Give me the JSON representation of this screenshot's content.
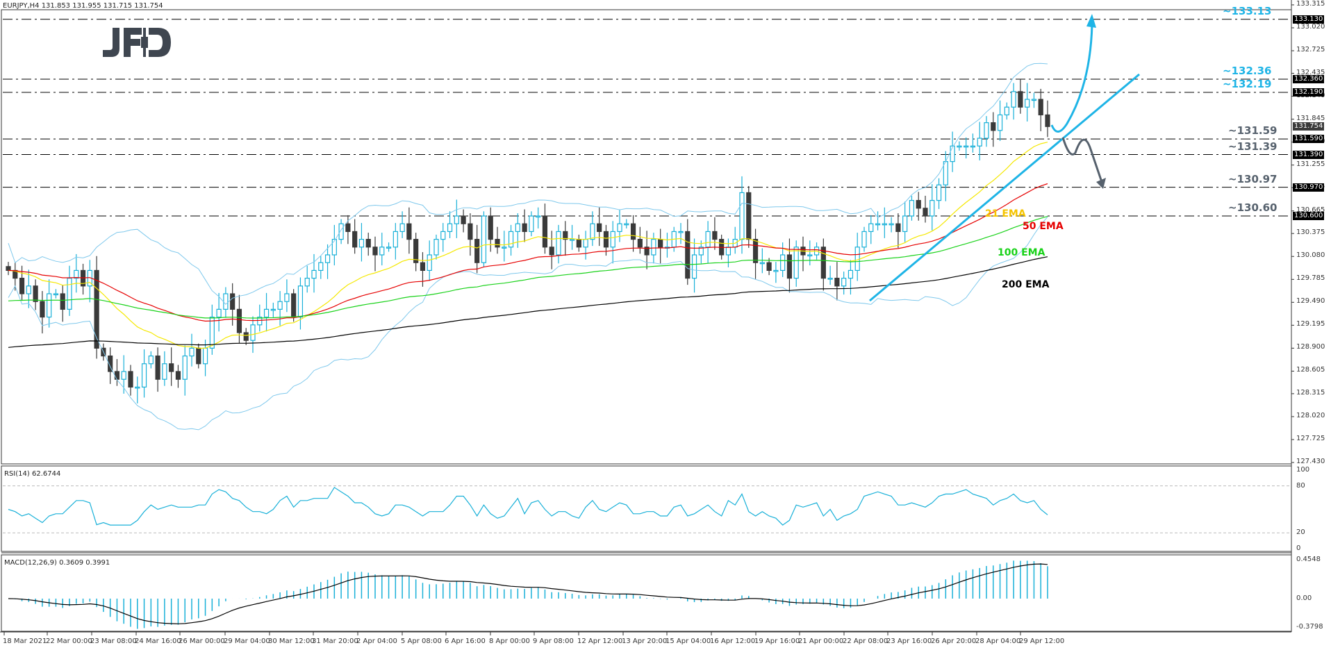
{
  "window": {
    "symbol_header": "EURJPY,H4  131.853 131.955 131.715 131.754",
    "logo_text": "JFD"
  },
  "chart_data": {
    "type": "candlestick",
    "title": "EURJPY,H4",
    "ohlc_header": {
      "open": 131.853,
      "high": 131.955,
      "low": 131.715,
      "close": 131.754
    },
    "price_axis": {
      "range": [
        127.43,
        133.315
      ],
      "ticks": [
        "133.315",
        "133.020",
        "132.725",
        "132.435",
        "132.140",
        "131.845",
        "131.550",
        "131.255",
        "130.965",
        "130.665",
        "130.375",
        "130.080",
        "129.785",
        "129.490",
        "129.195",
        "128.900",
        "128.605",
        "128.315",
        "128.020",
        "127.725",
        "127.430"
      ],
      "tags": [
        {
          "value": "133.130",
          "price": 133.13
        },
        {
          "value": "132.360",
          "price": 132.36
        },
        {
          "value": "132.190",
          "price": 132.19
        },
        {
          "value": "131.754",
          "price": 131.754,
          "current": true
        },
        {
          "value": "131.590",
          "price": 131.59
        },
        {
          "value": "131.390",
          "price": 131.39
        },
        {
          "value": "130.970",
          "price": 130.97
        },
        {
          "value": "130.600",
          "price": 130.6
        }
      ]
    },
    "levels": [
      {
        "label": "~133.13",
        "price": 133.13,
        "color": "#1eb4e6"
      },
      {
        "label": "~132.36",
        "price": 132.36,
        "color": "#1eb4e6"
      },
      {
        "label": "~132.19",
        "price": 132.19,
        "color": "#1eb4e6"
      },
      {
        "label": "~131.59",
        "price": 131.59,
        "color": "#56616d"
      },
      {
        "label": "~131.39",
        "price": 131.39,
        "color": "#56616d"
      },
      {
        "label": "~130.97",
        "price": 130.97,
        "color": "#56616d"
      },
      {
        "label": "~130.60",
        "price": 130.6,
        "color": "#56616d"
      }
    ],
    "ema_labels": [
      {
        "label": "21 EMA",
        "color": "#f5c400"
      },
      {
        "label": "50 EMA",
        "color": "#e60000"
      },
      {
        "label": "100 EMA",
        "color": "#19d219"
      },
      {
        "label": "200 EMA",
        "color": "#000000"
      }
    ],
    "indicators": {
      "rsi": {
        "label": "RSI(14) 62.6744",
        "value": 62.6744,
        "levels": [
          80,
          20
        ],
        "axis": [
          "100",
          "80",
          "20",
          "0"
        ]
      },
      "macd": {
        "label": "MACD(12,26,9) 0.3609 0.3991",
        "main": 0.3609,
        "signal": 0.3991,
        "axis": [
          "0.4548",
          "0.00",
          "-0.3798"
        ]
      }
    },
    "time_axis": [
      "18 Mar 2021",
      "22 Mar 00:00",
      "23 Mar 08:00",
      "24 Mar 16:00",
      "26 Mar 00:00",
      "29 Mar 04:00",
      "30 Mar 12:00",
      "31 Mar 20:00",
      "2 Apr 04:00",
      "5 Apr 08:00",
      "6 Apr 16:00",
      "8 Apr 00:00",
      "9 Apr 08:00",
      "12 Apr 12:00",
      "13 Apr 20:00",
      "15 Apr 04:00",
      "16 Apr 12:00",
      "19 Apr 16:00",
      "21 Apr 00:00",
      "22 Apr 08:00",
      "23 Apr 16:00",
      "26 Apr 20:00",
      "28 Apr 04:00",
      "29 Apr 12:00"
    ],
    "close_series_approx": [
      129.9,
      129.8,
      129.6,
      129.7,
      129.5,
      129.3,
      129.6,
      129.6,
      129.4,
      129.8,
      129.9,
      129.7,
      129.9,
      128.9,
      128.8,
      128.6,
      128.5,
      128.6,
      128.4,
      128.4,
      128.7,
      128.8,
      128.5,
      128.7,
      128.6,
      128.5,
      128.8,
      128.9,
      128.7,
      128.9,
      129.3,
      129.4,
      129.6,
      129.4,
      129.1,
      129.0,
      129.2,
      129.3,
      129.4,
      129.4,
      129.5,
      129.6,
      129.3,
      129.7,
      129.8,
      129.9,
      130.0,
      130.1,
      130.3,
      130.5,
      130.4,
      130.2,
      130.3,
      130.2,
      130.1,
      130.2,
      130.2,
      130.4,
      130.5,
      130.3,
      130.0,
      129.9,
      130.1,
      130.3,
      130.4,
      130.5,
      130.6,
      130.5,
      130.3,
      130.0,
      130.6,
      130.3,
      130.2,
      130.2,
      130.4,
      130.5,
      130.4,
      130.6,
      130.6,
      130.2,
      130.1,
      130.4,
      130.3,
      130.3,
      130.2,
      130.3,
      130.5,
      130.4,
      130.2,
      130.4,
      130.5,
      130.5,
      130.3,
      130.2,
      130.1,
      130.3,
      130.2,
      130.2,
      130.4,
      130.4,
      129.8,
      130.1,
      130.2,
      130.4,
      130.3,
      130.1,
      130.2,
      130.3,
      130.9,
      130.3,
      130.0,
      130.0,
      129.9,
      129.9,
      130.1,
      129.8,
      130.2,
      130.1,
      130.1,
      130.2,
      129.8,
      129.8,
      129.7,
      129.8,
      129.9,
      130.2,
      130.4,
      130.5,
      130.5,
      130.5,
      130.5,
      130.4,
      130.6,
      130.8,
      130.7,
      130.6,
      130.8,
      131.0,
      131.3,
      131.5,
      131.5,
      131.5,
      131.5,
      131.6,
      131.8,
      131.7,
      131.9,
      132.0,
      132.2,
      132.0,
      132.1,
      132.1,
      131.9,
      131.75
    ]
  }
}
